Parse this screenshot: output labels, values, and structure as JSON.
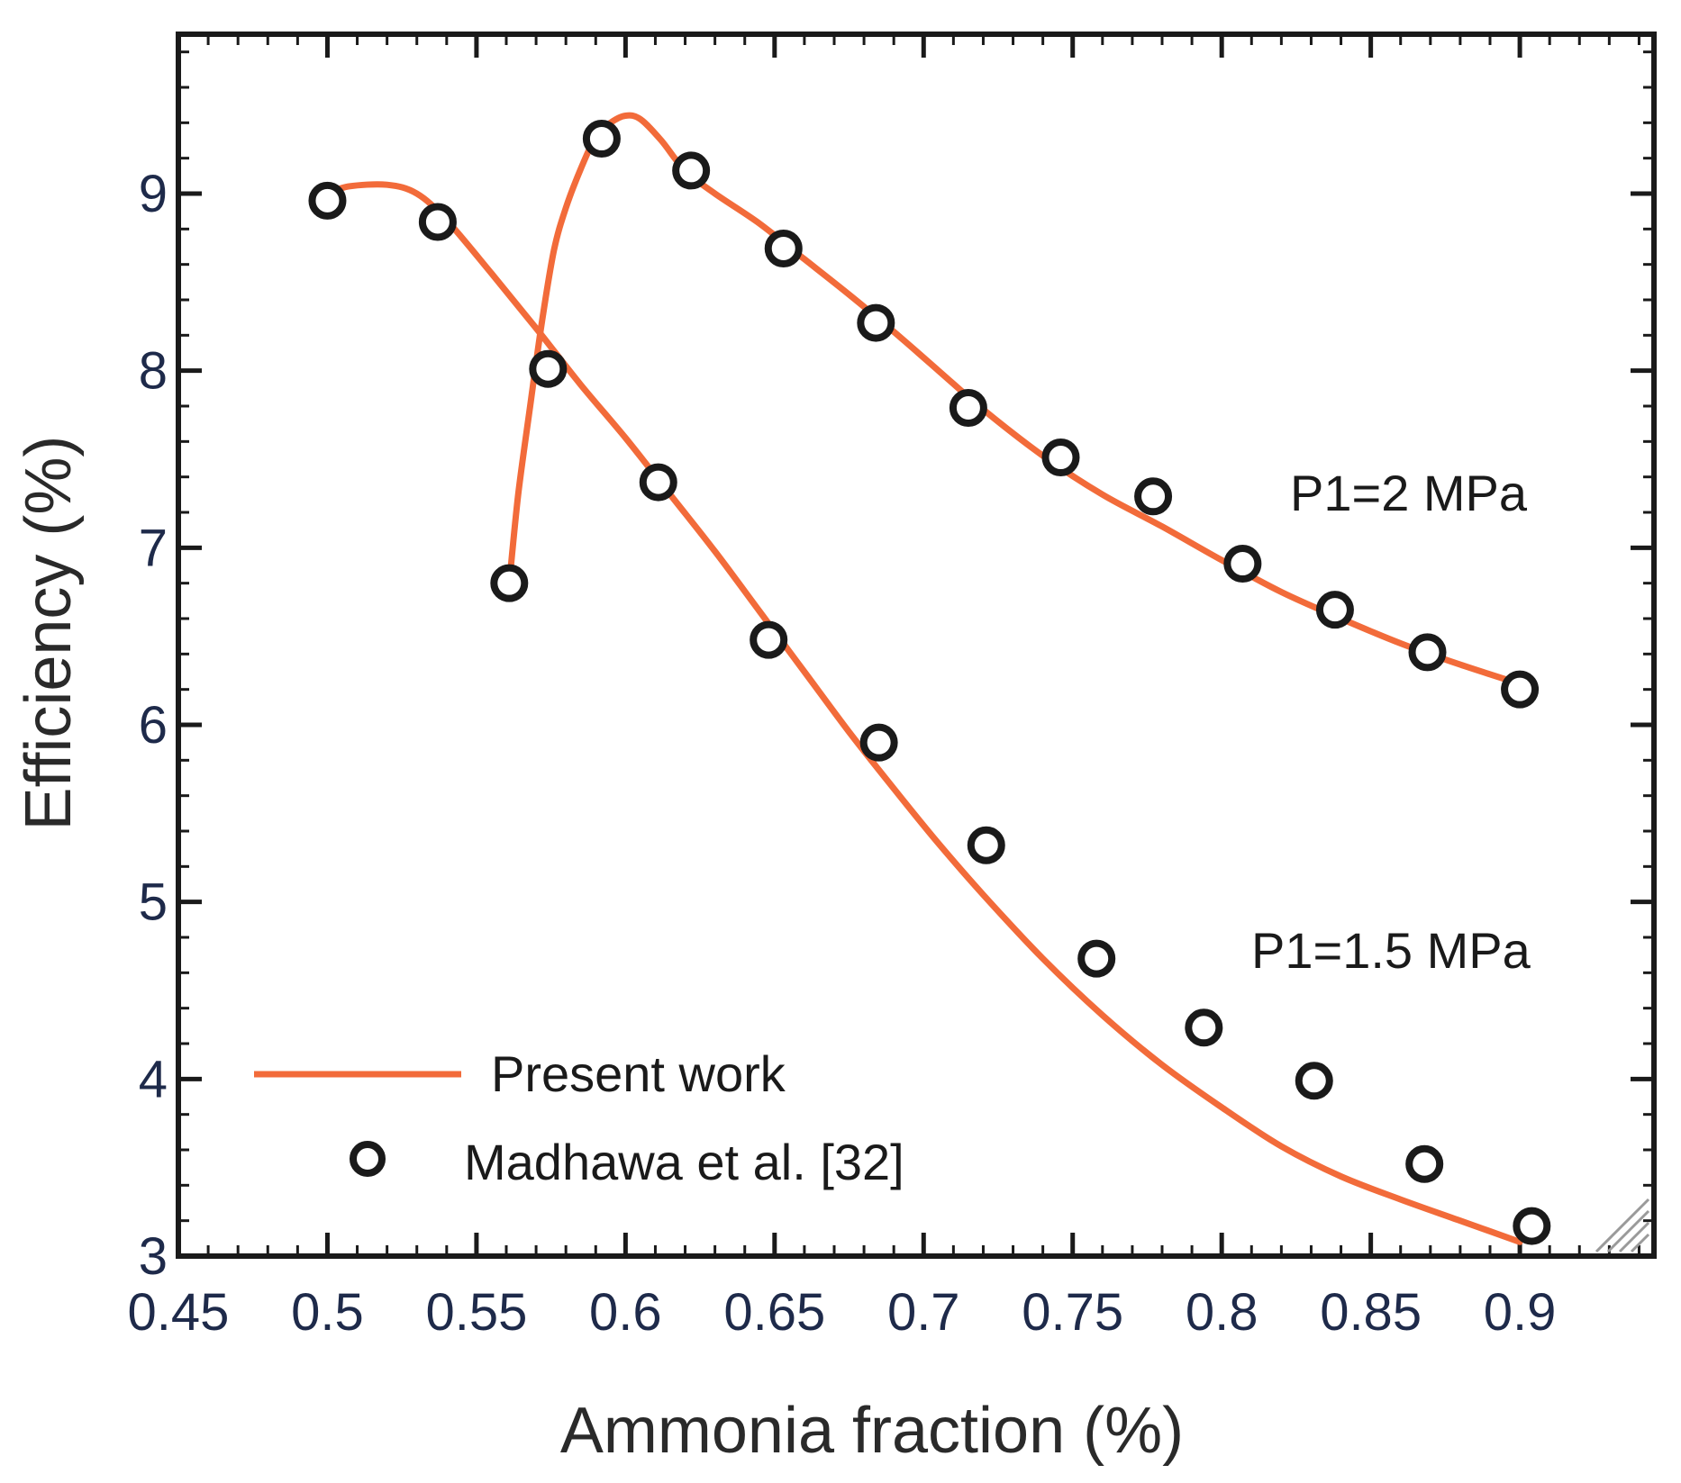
{
  "chart_data": {
    "type": "line",
    "title": "",
    "xlabel": "Ammonia fraction (%)",
    "ylabel": "Efficiency (%)",
    "xlim": [
      0.45,
      0.945
    ],
    "ylim": [
      3,
      9.9
    ],
    "xticks": [
      0.45,
      0.5,
      0.55,
      0.6,
      0.65,
      0.7,
      0.75,
      0.8,
      0.85,
      0.9
    ],
    "xtick_labels": [
      "0.45",
      "0.5",
      "0.55",
      "0.6",
      "0.65",
      "0.7",
      "0.75",
      "0.8",
      "0.85",
      "0.9"
    ],
    "yticks": [
      3,
      4,
      5,
      6,
      7,
      8,
      9
    ],
    "ytick_labels": [
      "3",
      "4",
      "5",
      "6",
      "7",
      "8",
      "9"
    ],
    "grid": false,
    "colors": {
      "line": "#f26b3a",
      "marker": "#1a1a1a",
      "axis": "#1a1a1a"
    },
    "series": [
      {
        "name": "P1=1.5 MPa",
        "label": "P1=1.5 MPa",
        "curve_x": [
          0.5,
          0.507,
          0.52,
          0.53,
          0.54,
          0.555,
          0.57,
          0.585,
          0.6,
          0.615,
          0.63,
          0.645,
          0.66,
          0.675,
          0.69,
          0.705,
          0.72,
          0.74,
          0.76,
          0.78,
          0.8,
          0.82,
          0.84,
          0.86,
          0.88,
          0.9
        ],
        "curve_y": [
          9.0,
          9.04,
          9.05,
          9.0,
          8.85,
          8.55,
          8.24,
          7.92,
          7.62,
          7.3,
          6.98,
          6.64,
          6.3,
          5.96,
          5.64,
          5.33,
          5.04,
          4.68,
          4.36,
          4.08,
          3.84,
          3.62,
          3.45,
          3.32,
          3.2,
          3.08
        ],
        "points_x": [
          0.5,
          0.537,
          0.574,
          0.611,
          0.648,
          0.685,
          0.721,
          0.758,
          0.794,
          0.831,
          0.868,
          0.904
        ],
        "points_y": [
          8.96,
          8.84,
          8.01,
          7.37,
          6.48,
          5.9,
          5.32,
          4.68,
          4.29,
          3.99,
          3.52,
          3.17
        ]
      },
      {
        "name": "P1=2 MPa",
        "label": "P1=2 MPa",
        "curve_x": [
          0.561,
          0.564,
          0.568,
          0.572,
          0.576,
          0.58,
          0.585,
          0.59,
          0.595,
          0.6,
          0.605,
          0.612,
          0.62,
          0.63,
          0.645,
          0.66,
          0.675,
          0.69,
          0.705,
          0.72,
          0.74,
          0.76,
          0.78,
          0.8,
          0.82,
          0.84,
          0.86,
          0.88,
          0.904
        ],
        "curve_y": [
          6.8,
          7.3,
          7.8,
          8.28,
          8.68,
          8.92,
          9.14,
          9.32,
          9.4,
          9.44,
          9.42,
          9.3,
          9.13,
          9.0,
          8.83,
          8.63,
          8.43,
          8.22,
          8.0,
          7.78,
          7.52,
          7.3,
          7.12,
          6.93,
          6.75,
          6.6,
          6.46,
          6.34,
          6.21
        ],
        "points_x": [
          0.561,
          0.592,
          0.622,
          0.653,
          0.684,
          0.715,
          0.746,
          0.777,
          0.807,
          0.838,
          0.869,
          0.9
        ],
        "points_y": [
          6.8,
          9.31,
          9.13,
          8.69,
          8.27,
          7.79,
          7.51,
          7.29,
          6.91,
          6.65,
          6.41,
          6.2
        ]
      }
    ],
    "legend": {
      "position": "bottom-left",
      "entries": [
        {
          "label": "Present work",
          "kind": "line"
        },
        {
          "label": "Madhawa et al. [32]",
          "kind": "marker"
        }
      ]
    }
  }
}
